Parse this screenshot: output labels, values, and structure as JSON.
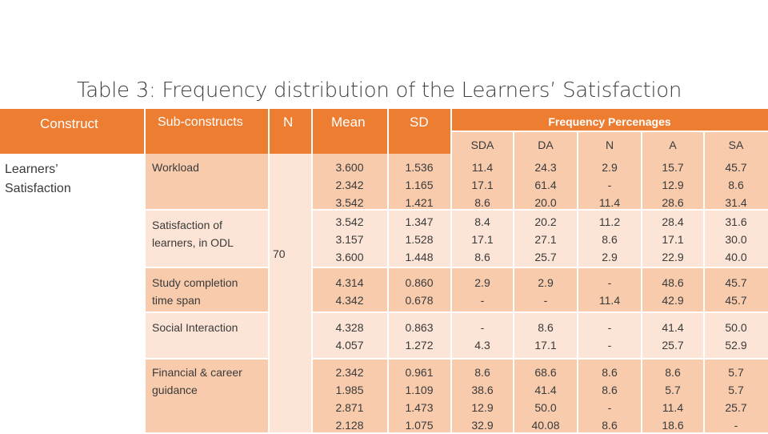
{
  "title": "Table 3: Frequency distribution of the Learners’ Satisfaction",
  "header": {
    "construct": "Construct",
    "subconstructs": "Sub-constructs",
    "n": "N",
    "mean": "Mean",
    "sd": "SD",
    "frequency": "Frequency Percenages",
    "sda": "SDA",
    "da": "DA",
    "n2": "N",
    "a": "A",
    "sa": "SA"
  },
  "construct_value": "Learners’\nSatisfaction",
  "n_value": "70",
  "rows": [
    {
      "sub": "Workload",
      "mean": "3.600\n2.342\n3.542",
      "sd": "1.536\n1.165\n1.421",
      "sda": "11.4\n17.1\n8.6",
      "da": "24.3\n61.4\n20.0",
      "n": "2.9\n-\n11.4",
      "a": "15.7\n12.9\n28.6",
      "sa": "45.7\n8.6\n31.4"
    },
    {
      "sub": "Satisfaction of\nlearners, in ODL",
      "mean": "3.542\n3.157\n3.600",
      "sd": "1.347\n1.528\n1.448",
      "sda": "8.4\n17.1\n8.6",
      "da": "20.2\n27.1\n25.7",
      "n": "11.2\n8.6\n2.9",
      "a": "28.4\n17.1\n22.9",
      "sa": "31.6\n30.0\n40.0"
    },
    {
      "sub": "Study completion\ntime span",
      "mean": "4.314\n4.342",
      "sd": "0.860\n0.678",
      "sda": "2.9\n-",
      "da": "2.9\n-",
      "n": "-\n11.4",
      "a": "48.6\n42.9",
      "sa": "45.7\n45.7"
    },
    {
      "sub": "Social Interaction",
      "mean": "4.328\n4.057",
      "sd": "0.863\n1.272",
      "sda": "-\n4.3",
      "da": "8.6\n17.1",
      "n": "-\n-",
      "a": "41.4\n25.7",
      "sa": "50.0\n52.9"
    },
    {
      "sub": "Financial & career\nguidance",
      "mean": "2.342\n1.985\n2.871\n2.128",
      "sd": "0.961\n1.109\n1.473\n1.075",
      "sda": "8.6\n38.6\n12.9\n32.9",
      "da": "68.6\n41.4\n50.0\n40.08",
      "n": "8.6\n8.6\n-\n8.6",
      "a": "8.6\n5.7\n11.4\n18.6",
      "sa": "5.7\n5.7\n25.7\n-"
    }
  ],
  "colors": {
    "header": "#ed7d31",
    "band_dark": "#f8cbad",
    "band_light": "#fce4d6",
    "title_text": "#404040"
  }
}
